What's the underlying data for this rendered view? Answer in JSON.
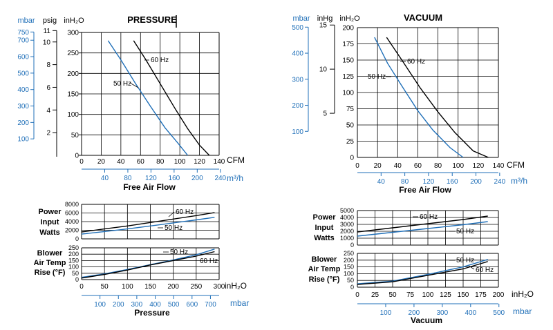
{
  "colors": {
    "black": "#000000",
    "blue": "#1f6fb8"
  },
  "chart_data": [
    {
      "type": "line",
      "title": "PRESSURE",
      "xlabel": "Free Air Flow",
      "x_unit": "CFM",
      "x2_unit": "m³/h",
      "y_units": [
        "mbar",
        "psig",
        "inH₂O"
      ],
      "xlim": [
        0,
        140
      ],
      "ylim": [
        0,
        300
      ],
      "x_ticks": [
        "0",
        "20",
        "40",
        "60",
        "80",
        "100",
        "120",
        "140"
      ],
      "x2_ticks": [
        "40",
        "80",
        "120",
        "160",
        "200",
        "240"
      ],
      "y_ticks": [
        "0",
        "50",
        "100",
        "150",
        "200",
        "250",
        "300"
      ],
      "psig_ticks": [
        "2",
        "4",
        "6",
        "8",
        "10",
        "11"
      ],
      "mbar_ticks": [
        "100",
        "200",
        "300",
        "400",
        "500",
        "600",
        "700",
        "750"
      ],
      "series": [
        {
          "name": "50 Hz",
          "color": "blue",
          "points": [
            [
              27,
              280
            ],
            [
              40,
              233
            ],
            [
              55,
              175
            ],
            [
              70,
              120
            ],
            [
              85,
              67
            ],
            [
              98,
              30
            ],
            [
              108,
              0
            ]
          ]
        },
        {
          "name": "60 Hz",
          "color": "black",
          "points": [
            [
              53,
              280
            ],
            [
              65,
              235
            ],
            [
              80,
              175
            ],
            [
              95,
              115
            ],
            [
              108,
              65
            ],
            [
              120,
              25
            ],
            [
              130,
              0
            ]
          ]
        }
      ]
    },
    {
      "type": "line",
      "title": "VACUUM",
      "xlabel": "Free Air Flow",
      "x_unit": "CFM",
      "x2_unit": "m³/h",
      "y_units": [
        "mbar",
        "inHg",
        "inH₂O"
      ],
      "xlim": [
        0,
        140
      ],
      "ylim": [
        0,
        200
      ],
      "x_ticks": [
        "0",
        "20",
        "40",
        "60",
        "80",
        "100",
        "120",
        "140"
      ],
      "x2_ticks": [
        "40",
        "80",
        "120",
        "160",
        "200",
        "240"
      ],
      "y_ticks": [
        "0",
        "25",
        "50",
        "75",
        "100",
        "125",
        "150",
        "175",
        "200"
      ],
      "inhg_ticks": [
        "5",
        "10",
        "15"
      ],
      "mbar_ticks": [
        "100",
        "200",
        "300",
        "400",
        "500"
      ],
      "series": [
        {
          "name": "50 Hz",
          "color": "blue",
          "points": [
            [
              17,
              185
            ],
            [
              30,
              145
            ],
            [
              45,
              108
            ],
            [
              60,
              72
            ],
            [
              75,
              42
            ],
            [
              92,
              15
            ],
            [
              105,
              0
            ]
          ]
        },
        {
          "name": "60 Hz",
          "color": "black",
          "points": [
            [
              29,
              185
            ],
            [
              45,
              148
            ],
            [
              62,
              108
            ],
            [
              80,
              70
            ],
            [
              97,
              38
            ],
            [
              115,
              10
            ],
            [
              130,
              0
            ]
          ]
        }
      ]
    },
    {
      "type": "line",
      "ylabel": "Power Input Watts",
      "xlim": [
        0,
        300
      ],
      "ylim": [
        0,
        8000
      ],
      "y_ticks": [
        "0",
        "2000",
        "4000",
        "6000",
        "8000"
      ],
      "series": [
        {
          "name": "60 Hz",
          "color": "black",
          "points": [
            [
              0,
              1600
            ],
            [
              50,
              2300
            ],
            [
              100,
              3000
            ],
            [
              150,
              3800
            ],
            [
              200,
              4600
            ],
            [
              250,
              5400
            ],
            [
              290,
              6100
            ]
          ]
        },
        {
          "name": "50 Hz",
          "color": "blue",
          "points": [
            [
              0,
              1100
            ],
            [
              50,
              1700
            ],
            [
              100,
              2300
            ],
            [
              150,
              3000
            ],
            [
              200,
              3700
            ],
            [
              250,
              4400
            ],
            [
              290,
              5000
            ]
          ]
        }
      ]
    },
    {
      "type": "line",
      "ylabel": "Blower Air Temp Rise (°F)",
      "xlabel": "Pressure",
      "x_unit": "inH₂O",
      "x2_unit": "mbar",
      "xlim": [
        0,
        300
      ],
      "ylim": [
        0,
        250
      ],
      "x_ticks": [
        "0",
        "50",
        "100",
        "150",
        "200",
        "250",
        "300"
      ],
      "x2_ticks": [
        "100",
        "200",
        "300",
        "400",
        "500",
        "600",
        "700"
      ],
      "y_ticks": [
        "0",
        "50",
        "100",
        "150",
        "200",
        "250"
      ],
      "series": [
        {
          "name": "50 Hz",
          "color": "blue",
          "points": [
            [
              0,
              18
            ],
            [
              50,
              45
            ],
            [
              100,
              80
            ],
            [
              150,
              118
            ],
            [
              200,
              155
            ],
            [
              250,
              195
            ],
            [
              290,
              240
            ]
          ]
        },
        {
          "name": "60 Hz",
          "color": "black",
          "points": [
            [
              0,
              12
            ],
            [
              50,
              40
            ],
            [
              100,
              75
            ],
            [
              150,
              115
            ],
            [
              200,
              150
            ],
            [
              250,
              185
            ],
            [
              290,
              220
            ]
          ]
        }
      ]
    },
    {
      "type": "line",
      "ylabel": "Power Input Watts",
      "xlim": [
        0,
        200
      ],
      "ylim": [
        0,
        5000
      ],
      "y_ticks": [
        "0",
        "1000",
        "2000",
        "3000",
        "4000",
        "5000"
      ],
      "series": [
        {
          "name": "60 Hz",
          "color": "black",
          "points": [
            [
              0,
              1900
            ],
            [
              50,
              2500
            ],
            [
              100,
              3100
            ],
            [
              150,
              3700
            ],
            [
              185,
              4200
            ]
          ]
        },
        {
          "name": "50 Hz",
          "color": "blue",
          "points": [
            [
              0,
              1300
            ],
            [
              50,
              1850
            ],
            [
              100,
              2400
            ],
            [
              150,
              2950
            ],
            [
              185,
              3400
            ]
          ]
        }
      ]
    },
    {
      "type": "line",
      "ylabel": "Blower Air Temp Rise (°F)",
      "xlabel": "Vacuum",
      "x_unit": "inH₂O",
      "x2_unit": "mbar",
      "xlim": [
        0,
        200
      ],
      "ylim": [
        0,
        250
      ],
      "x_ticks": [
        "0",
        "25",
        "50",
        "75",
        "100",
        "125",
        "150",
        "175",
        "200"
      ],
      "x2_ticks": [
        "100",
        "200",
        "300",
        "400",
        "500"
      ],
      "y_ticks": [
        "0",
        "50",
        "100",
        "150",
        "200",
        "250"
      ],
      "series": [
        {
          "name": "50 Hz",
          "color": "blue",
          "points": [
            [
              0,
              25
            ],
            [
              50,
              45
            ],
            [
              100,
              95
            ],
            [
              150,
              150
            ],
            [
              185,
              205
            ]
          ]
        },
        {
          "name": "60 Hz",
          "color": "black",
          "points": [
            [
              0,
              20
            ],
            [
              50,
              40
            ],
            [
              100,
              88
            ],
            [
              150,
              135
            ],
            [
              185,
              190
            ]
          ]
        }
      ]
    }
  ]
}
